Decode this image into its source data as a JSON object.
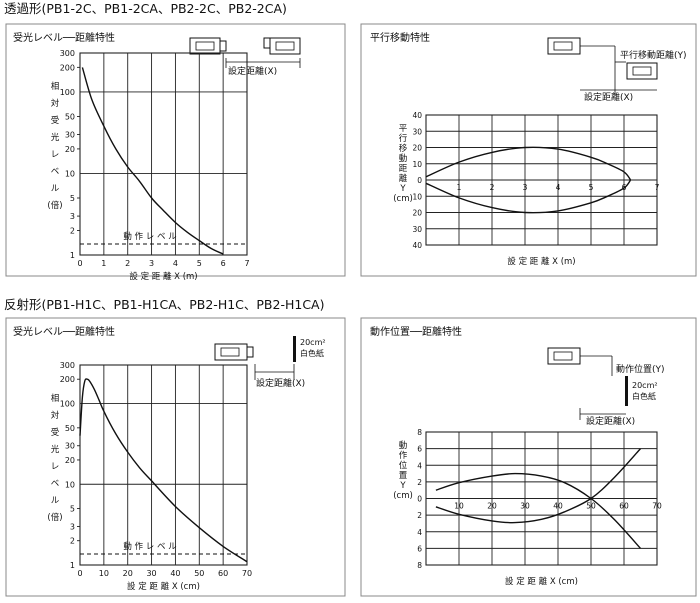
{
  "sections": [
    {
      "title": "透過形(PB1-2C、PB1-2CA、PB2-2C、PB2-2CA)"
    },
    {
      "title": "反射形(PB1-H1C、PB1-H1CA、PB2-H1C、PB2-H1CA)"
    }
  ],
  "diagrams": {
    "d1_label": "設定距離(X)",
    "d2_label_y": "平行移動距離(Y)",
    "d2_label_x": "設定距離(X)",
    "d3_label": "設定距離(X)",
    "d3_paper_line1": "20cm²",
    "d3_paper_line2": "白色紙",
    "d4_label_y": "動作位置(Y)",
    "d4_paper_line1": "20cm²",
    "d4_paper_line2": "白色紙",
    "d4_label_x": "設定距離(X)"
  },
  "chart_data": [
    {
      "id": "c1",
      "type": "line",
      "title": "受光レベル──距離特性",
      "xlabel": "設 定 距 離 X (m)",
      "ylabel": [
        "相",
        "対",
        "受",
        "光",
        "レ",
        "ベ",
        "ル",
        "(倍)"
      ],
      "xlim": [
        0,
        7
      ],
      "ylim": [
        1,
        300
      ],
      "yscale": "log",
      "xticks": [
        "0",
        "1",
        "2",
        "3",
        "4",
        "5",
        "6",
        "7"
      ],
      "yticks": [
        "300",
        "200",
        "100",
        "50",
        "30",
        "20",
        "10",
        "5",
        "3",
        "2",
        "1"
      ],
      "grid": true,
      "threshold": {
        "label": "動 作 レ ベ ル",
        "value": 1
      },
      "series": [
        {
          "x": [
            0.1,
            0.5,
            1,
            1.5,
            2,
            2.5,
            3,
            3.5,
            4,
            4.5,
            5,
            5.5,
            6
          ],
          "y": [
            200,
            80,
            38,
            20,
            12,
            8,
            5,
            3.5,
            2.5,
            1.9,
            1.5,
            1.2,
            1.03
          ]
        }
      ]
    },
    {
      "id": "c2",
      "type": "line",
      "title": "平行移動特性",
      "xlabel": "設 定 距 離 X (m)",
      "ylabel": [
        "平",
        "行",
        "移",
        "動",
        "距",
        "離",
        "Y",
        "(cm)"
      ],
      "xlim": [
        0,
        7
      ],
      "ylim": [
        -40,
        40
      ],
      "xticks": [
        "1",
        "2",
        "3",
        "4",
        "5",
        "6",
        "7"
      ],
      "yticks": [
        "40",
        "30",
        "20",
        "10",
        "0",
        "10",
        "20",
        "30",
        "40"
      ],
      "grid": true,
      "series": [
        {
          "x": [
            0,
            1,
            2,
            3,
            4,
            5,
            5.5,
            6,
            6.2
          ],
          "y": [
            2,
            11,
            17,
            20,
            19,
            14,
            10,
            5,
            0
          ]
        },
        {
          "x": [
            0,
            1,
            2,
            3,
            4,
            5,
            5.5,
            6,
            6.2
          ],
          "y": [
            -2,
            -11,
            -17,
            -20,
            -19,
            -14,
            -10,
            -5,
            0
          ]
        }
      ]
    },
    {
      "id": "c3",
      "type": "line",
      "title": "受光レベル──距離特性",
      "xlabel": "設 定 距 離 X (cm)",
      "ylabel": [
        "相",
        "対",
        "受",
        "光",
        "レ",
        "ベ",
        "ル",
        "(倍)"
      ],
      "xlim": [
        0,
        70
      ],
      "ylim": [
        1,
        300
      ],
      "yscale": "log",
      "xticks": [
        "0",
        "10",
        "20",
        "30",
        "40",
        "50",
        "60",
        "70"
      ],
      "yticks": [
        "300",
        "200",
        "100",
        "50",
        "30",
        "20",
        "10",
        "5",
        "3",
        "2",
        "1"
      ],
      "grid": true,
      "threshold": {
        "label": "動 作 レ ベ ル",
        "value": 1
      },
      "series": [
        {
          "x": [
            0,
            1,
            2,
            3,
            4,
            6,
            8,
            10,
            15,
            20,
            25,
            30,
            40,
            50,
            60,
            70
          ],
          "y": [
            40,
            120,
            190,
            200,
            190,
            150,
            110,
            80,
            42,
            25,
            16,
            11,
            5.3,
            2.9,
            1.7,
            1.1
          ]
        }
      ]
    },
    {
      "id": "c4",
      "type": "line",
      "title": "動作位置──距離特性",
      "xlabel": "設 定 距 離 X (cm)",
      "ylabel": [
        "動",
        "作",
        "位",
        "置",
        "Y",
        "(cm)"
      ],
      "xlim": [
        0,
        70
      ],
      "ylim": [
        -8,
        8
      ],
      "xticks": [
        "10",
        "20",
        "30",
        "40",
        "50",
        "60",
        "70"
      ],
      "yticks": [
        "8",
        "6",
        "4",
        "2",
        "0",
        "2",
        "4",
        "6",
        "8"
      ],
      "grid": true,
      "series": [
        {
          "x": [
            3,
            10,
            20,
            27,
            35,
            42,
            50,
            57,
            65
          ],
          "y": [
            1,
            1.9,
            2.7,
            3,
            2.7,
            1.9,
            0,
            -2.5,
            -6
          ]
        },
        {
          "x": [
            3,
            10,
            20,
            27,
            35,
            42,
            50,
            57,
            65
          ],
          "y": [
            -1,
            -1.9,
            -2.7,
            -2.9,
            -2.5,
            -1.6,
            0,
            2.5,
            6
          ]
        }
      ]
    }
  ]
}
